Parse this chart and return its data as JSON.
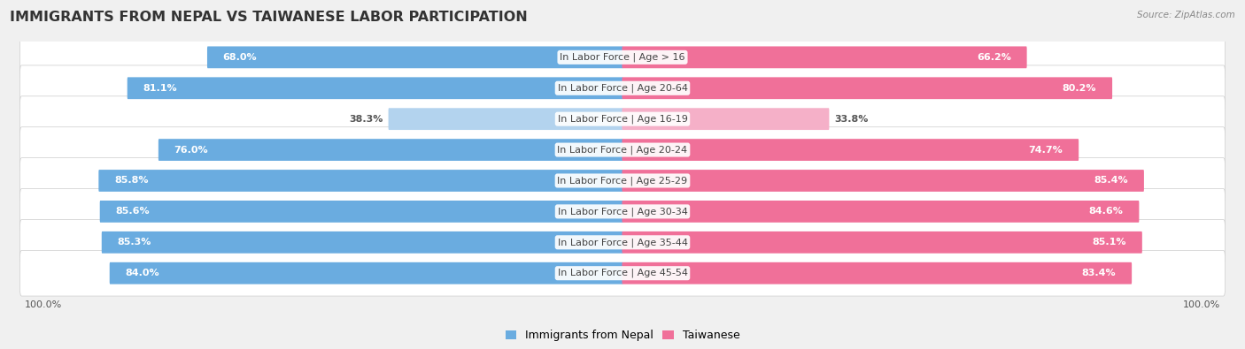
{
  "title": "IMMIGRANTS FROM NEPAL VS TAIWANESE LABOR PARTICIPATION",
  "source": "Source: ZipAtlas.com",
  "categories": [
    "In Labor Force | Age > 16",
    "In Labor Force | Age 20-64",
    "In Labor Force | Age 16-19",
    "In Labor Force | Age 20-24",
    "In Labor Force | Age 25-29",
    "In Labor Force | Age 30-34",
    "In Labor Force | Age 35-44",
    "In Labor Force | Age 45-54"
  ],
  "nepal_values": [
    68.0,
    81.1,
    38.3,
    76.0,
    85.8,
    85.6,
    85.3,
    84.0
  ],
  "taiwanese_values": [
    66.2,
    80.2,
    33.8,
    74.7,
    85.4,
    84.6,
    85.1,
    83.4
  ],
  "nepal_color": "#6aace0",
  "nepal_color_light": "#b3d3ee",
  "taiwanese_color": "#f07099",
  "taiwanese_color_light": "#f5b0c8",
  "bg_color": "#f0f0f0",
  "row_bg": "#e8e8e8",
  "row_bg_alt": "#f5f5f5",
  "label_fontsize": 8.0,
  "title_fontsize": 11.5,
  "legend_fontsize": 9,
  "axis_label_fontsize": 8,
  "max_value": 100.0,
  "light_threshold": 50
}
